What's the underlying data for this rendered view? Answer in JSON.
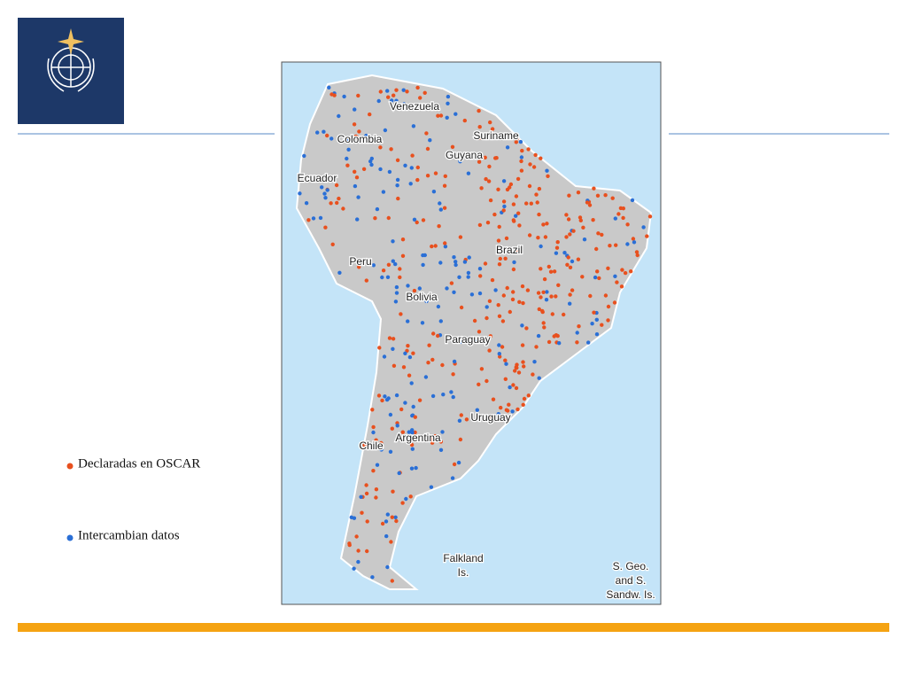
{
  "map": {
    "labels": [
      {
        "lines": [
          "Venezuela"
        ]
      },
      {
        "lines": [
          "Colombia"
        ]
      },
      {
        "lines": [
          "Suriname"
        ]
      },
      {
        "lines": [
          "Guyana"
        ]
      },
      {
        "lines": [
          "Ecuador"
        ]
      },
      {
        "lines": [
          "Brazil"
        ]
      },
      {
        "lines": [
          "Peru"
        ]
      },
      {
        "lines": [
          "Bolivia"
        ]
      },
      {
        "lines": [
          "Paraguay"
        ]
      },
      {
        "lines": [
          "Uruguay"
        ]
      },
      {
        "lines": [
          "Argentina"
        ]
      },
      {
        "lines": [
          "Chile"
        ]
      },
      {
        "lines": [
          "Falkland",
          "Is."
        ]
      },
      {
        "lines": [
          "S. Geo.",
          "and S.",
          "Sandw. Is."
        ]
      }
    ]
  },
  "legend": {
    "items": [
      {
        "label": "Declaradas en OSCAR",
        "color": "#e8501e"
      },
      {
        "label": "Intercambian datos",
        "color": "#2a6fd6"
      }
    ]
  }
}
